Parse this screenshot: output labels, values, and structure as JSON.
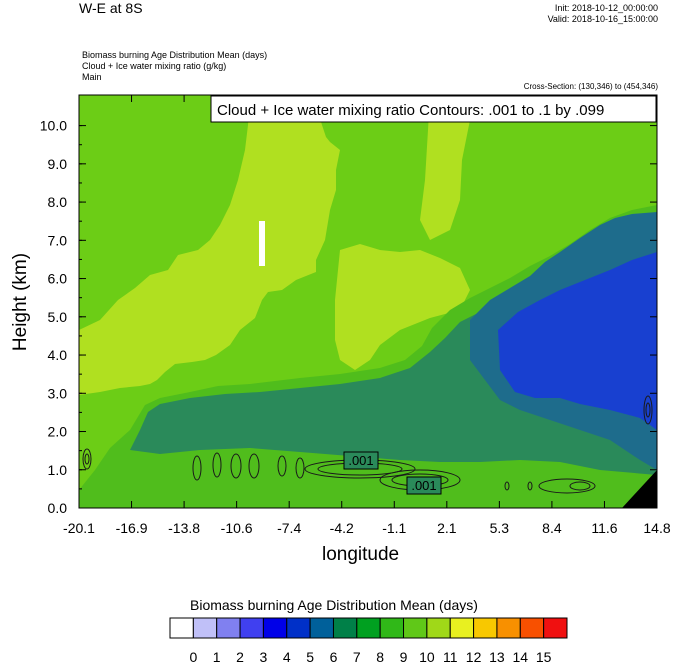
{
  "header": {
    "title": "W-E at 8S",
    "init": "Init: 2018-10-12_00:00:00",
    "valid": "Valid: 2018-10-16_15:00:00",
    "field1": "Biomass burning Age Distribution Mean    (days)",
    "field2": "Cloud + Ice water mixing ratio    (g/kg)",
    "field3": "Main",
    "cross_section": "Cross-Section: (130,346) to (454,346)"
  },
  "chart_data": {
    "type": "heatmap",
    "title": "W-E at 8S",
    "xlabel": "longitude",
    "ylabel": "Height (km)",
    "xlim": [
      -20.1,
      14.8
    ],
    "ylim": [
      0.0,
      10.8
    ],
    "x_ticks": [
      "-20.1",
      "-16.9",
      "-13.8",
      "-10.6",
      "-7.4",
      "-4.2",
      "-1.1",
      "2.1",
      "5.3",
      "8.4",
      "11.6",
      "14.8"
    ],
    "y_ticks": [
      "0.0",
      "1.0",
      "2.0",
      "3.0",
      "4.0",
      "5.0",
      "6.0",
      "7.0",
      "8.0",
      "9.0",
      "10.0"
    ],
    "contour_legend": "Cloud + Ice water mixing ratio Contours: .001 to .1 by .099",
    "contour_labels": [
      ".001",
      ".001"
    ],
    "colorbar": {
      "title": "Biomass burning Age Distribution Mean  (days)",
      "labels": [
        "0",
        "1",
        "2",
        "3",
        "4",
        "5",
        "6",
        "7",
        "8",
        "9",
        "10",
        "11",
        "12",
        "13",
        "14",
        "15"
      ],
      "colors": [
        "#ffffff",
        "#c0c0f8",
        "#8080f0",
        "#4040f0",
        "#0000e8",
        "#0030c8",
        "#00609a",
        "#008048",
        "#00a020",
        "#30b818",
        "#60c818",
        "#a0d818",
        "#e8f020",
        "#f8c800",
        "#f89000",
        "#f85000",
        "#f01010"
      ]
    },
    "regions": [
      {
        "name": "background",
        "level": 10.5,
        "color": "#6ccd16"
      },
      {
        "name": "upper-light-band",
        "level": 11,
        "color": "#b0e020"
      },
      {
        "name": "mid-layer",
        "level": 8.5,
        "color": "#50bd1c"
      },
      {
        "name": "boundary-layer-core",
        "level": 6.5,
        "color": "#2a8a5a"
      },
      {
        "name": "east-upper-teal",
        "level": 6,
        "color": "#1e6c8c"
      },
      {
        "name": "east-blue-plume",
        "level": 4.5,
        "color": "#1840d0"
      }
    ]
  }
}
